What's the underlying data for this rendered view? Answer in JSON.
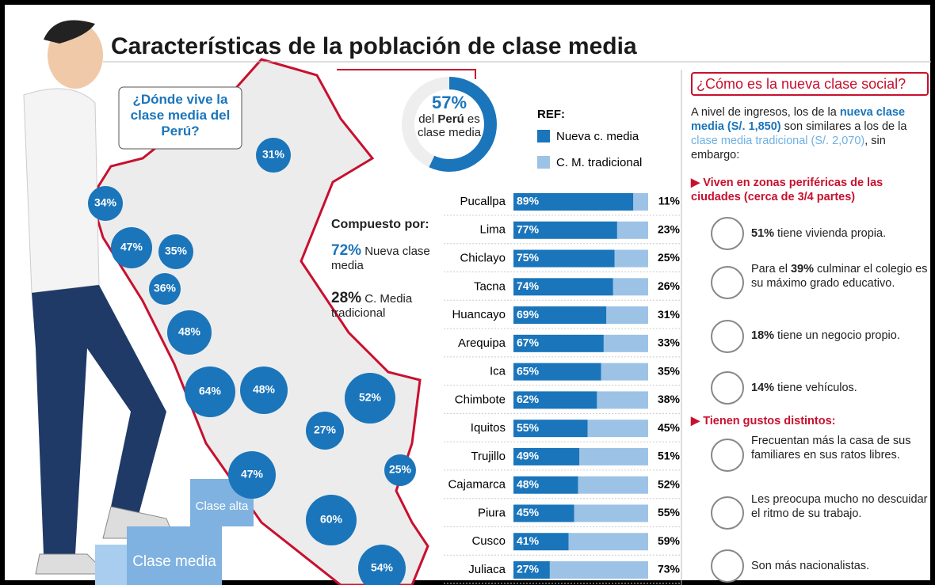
{
  "title": "Características de la población de clase media",
  "map": {
    "question": "¿Dónde vive la clase media del Perú?",
    "bubbles": [
      "31%",
      "34%",
      "47%",
      "35%",
      "36%",
      "48%",
      "64%",
      "48%",
      "52%",
      "27%",
      "25%",
      "47%",
      "60%",
      "54%"
    ]
  },
  "composition": {
    "heading": "Compuesto por:",
    "items": [
      {
        "value": "72%",
        "label": "Nueva clase media"
      },
      {
        "value": "28%",
        "label": "C. Media tradicional"
      }
    ]
  },
  "stairs": [
    "Clase alta",
    "Clase media"
  ],
  "chart_data": [
    {
      "type": "pie",
      "values": [
        57
      ],
      "value_labels": [
        "57%"
      ],
      "color": "#1a75bb",
      "caption": [
        "del ",
        "Perú",
        " es clase media"
      ]
    },
    {
      "type": "bar",
      "orientation": "horizontal",
      "stacked": true,
      "legend_title": "REF:",
      "xlim": [
        0,
        100
      ],
      "categories": [
        "Pucallpa",
        "Lima",
        "Chiclayo",
        "Tacna",
        "Huancayo",
        "Arequipa",
        "Ica",
        "Chimbote",
        "Iquitos",
        "Trujillo",
        "Cajamarca",
        "Piura",
        "Cusco",
        "Juliaca"
      ],
      "series": [
        {
          "name": "Nueva c. media",
          "color": "#1a75bb",
          "values": [
            89,
            77,
            75,
            74,
            69,
            67,
            65,
            62,
            55,
            49,
            48,
            45,
            41,
            27
          ],
          "value_labels": [
            "89%",
            "77%",
            "75%",
            "74%",
            "69%",
            "67%",
            "65%",
            "62%",
            "55%",
            "49%",
            "48%",
            "45%",
            "41%",
            "27%"
          ]
        },
        {
          "name": "C. M. tradicional",
          "color": "#9cc3e6",
          "values": [
            11,
            23,
            25,
            26,
            31,
            33,
            35,
            38,
            45,
            51,
            52,
            55,
            59,
            73
          ],
          "value_labels": [
            "11%",
            "23%",
            "25%",
            "26%",
            "31%",
            "33%",
            "35%",
            "38%",
            "45%",
            "51%",
            "52%",
            "55%",
            "59%",
            "73%"
          ]
        }
      ]
    }
  ],
  "panel": {
    "heading": "¿Cómo es la nueva clase social?",
    "intro": [
      "A nivel de ingresos, los de la ",
      "nueva clase media (S/. 1,850)",
      " son similares a los de la ",
      "clase media tradicional (S/. 2,070)",
      ", sin embargo:"
    ],
    "sections": [
      {
        "heading": "Viven en zonas periféricas de las ciudades (cerca de 3/4 partes)",
        "items": [
          [
            "51%",
            " tiene vivienda propia."
          ],
          [
            "Para el ",
            "39%",
            " culminar el colegio es su máximo grado educativo."
          ],
          [
            "18%",
            " tiene un negocio propio."
          ],
          [
            "14%",
            " tiene vehículos."
          ]
        ]
      },
      {
        "heading": "Tienen gustos distintos:",
        "items": [
          [
            "Frecuentan más la casa de sus familiares en sus ratos libres."
          ],
          [
            "Les preocupa mucho no descuidar el ritmo de su trabajo."
          ],
          [
            "Son más nacionalistas."
          ]
        ]
      }
    ]
  }
}
